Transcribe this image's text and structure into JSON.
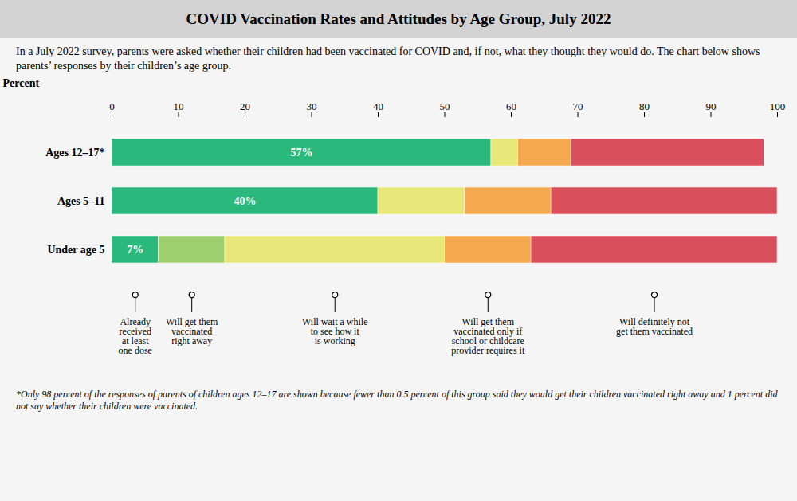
{
  "chart_data": {
    "type": "bar",
    "orientation": "horizontal",
    "stacked": true,
    "title": "COVID Vaccination Rates and Attitudes by Age Group, July 2022",
    "subtitle": "In a July 2022 survey, parents were asked whether their children had been vaccinated for COVID and, if not, what they thought they would do. The chart below shows parents’ responses by their children’s age group.",
    "footnote": "*Only 98 percent of the responses of parents of children ages 12–17 are shown because fewer than 0.5 percent of this group said they would get their children vaccinated right away and 1 percent did not say whether their children were vaccinated.",
    "xlabel": "Percent",
    "categories": [
      "Ages 12–17*",
      "Ages 5–11",
      "Under age 5"
    ],
    "series": [
      {
        "name": "Already\nreceived\nat least\none dose",
        "color": "#2ab87d",
        "values": [
          57,
          40,
          7
        ],
        "value_labels": [
          "57%",
          "40%",
          "7%"
        ]
      },
      {
        "name": "Will get them\nvaccinated\nright away",
        "color": "#9ecf6e",
        "values": [
          null,
          null,
          10
        ]
      },
      {
        "name": "Will wait a while\nto see how it\nis working",
        "color": "#e8e87a",
        "values": [
          4,
          13,
          33
        ]
      },
      {
        "name": "Will get them\nvaccinated only if\nschool or childcare\nprovider requires it",
        "color": "#f5a94e",
        "values": [
          8,
          13,
          13
        ]
      },
      {
        "name": "Will definitely not\nget them vaccinated",
        "color": "#d94f5c",
        "values": [
          29,
          34,
          37
        ]
      }
    ],
    "xlim": [
      0,
      100
    ],
    "xticks": [
      0,
      10,
      20,
      30,
      40,
      50,
      60,
      70,
      80,
      90,
      100
    ],
    "grid": false
  }
}
